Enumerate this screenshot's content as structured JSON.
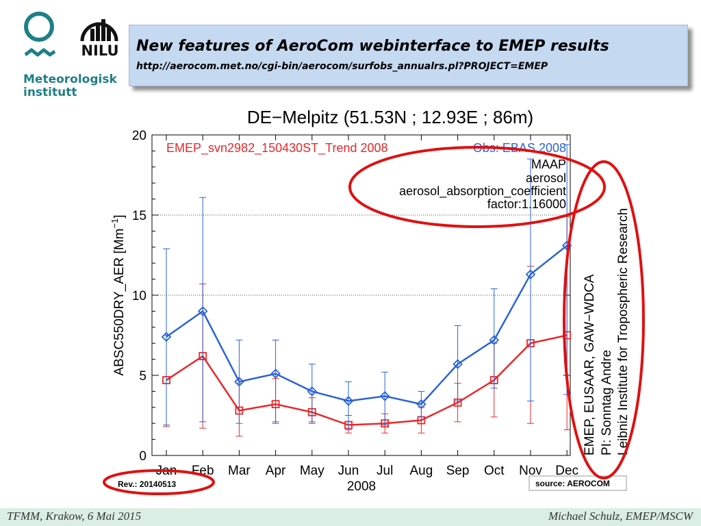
{
  "header": {
    "title": "New features of AeroCom webinterface to EMEP results",
    "url": "http://aerocom.met.no/cgi-bin/aerocom/surfobs_annualrs.pl?PROJECT=EMEP"
  },
  "logos": {
    "met_name": "Meteorologisk institutt",
    "nilu_name": "NILU"
  },
  "footer": {
    "left": "TFMM, Krakow, 6 Mai 2015",
    "right": "Michael Schulz, EMEP/MSCW"
  },
  "colors": {
    "model": "#e8282a",
    "obs": "#2a63d8",
    "highlight": "#e01010",
    "title_bg": "#c5d9f1",
    "footer_bg": "#dbeee3",
    "logo_teal": "#1f7f86"
  },
  "chart_data": {
    "type": "line",
    "title": "DE−Melpitz (51.53N ; 12.93E ; 86m)",
    "xlabel": "2008",
    "ylabel": "ABSC550DRY_AER [Mm",
    "ylabel_sup": "−1",
    "ylabel_end": "]",
    "categories": [
      "Jan",
      "Feb",
      "Mar",
      "Apr",
      "May",
      "Jun",
      "Jul",
      "Aug",
      "Sep",
      "Oct",
      "Nov",
      "Dec"
    ],
    "ylim": [
      0,
      20
    ],
    "yticks": [
      0,
      5,
      10,
      15,
      20
    ],
    "grid_values": [
      10,
      15
    ],
    "series": [
      {
        "name": "EMEP_svn2982_150430ST_Trend 2008",
        "marker": "square",
        "values": [
          4.7,
          6.2,
          2.8,
          3.2,
          2.7,
          1.9,
          2.0,
          2.2,
          3.3,
          4.7,
          7.0,
          7.5
        ],
        "err_low": [
          1.8,
          1.7,
          1.2,
          2.0,
          2.0,
          1.4,
          1.4,
          1.4,
          2.1,
          2.4,
          2.0,
          1.6
        ],
        "err_high": [
          7.5,
          10.7,
          4.5,
          4.8,
          3.6,
          2.5,
          2.6,
          3.0,
          4.5,
          7.0,
          11.8,
          14.9
        ]
      },
      {
        "name": "Obs: EBAS 2008",
        "marker": "diamond",
        "values": [
          7.4,
          9.0,
          4.6,
          5.1,
          4.0,
          3.4,
          3.7,
          3.2,
          5.7,
          7.2,
          11.3,
          13.1
        ],
        "err_low": [
          1.9,
          2.1,
          2.0,
          2.1,
          2.1,
          1.6,
          1.9,
          2.4,
          3.4,
          4.2,
          3.4,
          3.8
        ],
        "err_high": [
          12.9,
          16.1,
          7.2,
          7.2,
          5.7,
          4.6,
          5.2,
          4.0,
          8.1,
          10.4,
          18.5,
          19.4
        ]
      }
    ],
    "annotations_right": [
      "MAAP",
      "aerosol",
      "aerosol_absorption_coefficient",
      "factor:1.16000"
    ],
    "station_info": [
      "EMEP, EUSAAR, GAW−WDCA",
      "PI: Sonntag Andre",
      "Leibniz Institute for Tropospheric Research"
    ],
    "revision": "Rev.: 20140513",
    "source": "source: AEROCOM"
  }
}
